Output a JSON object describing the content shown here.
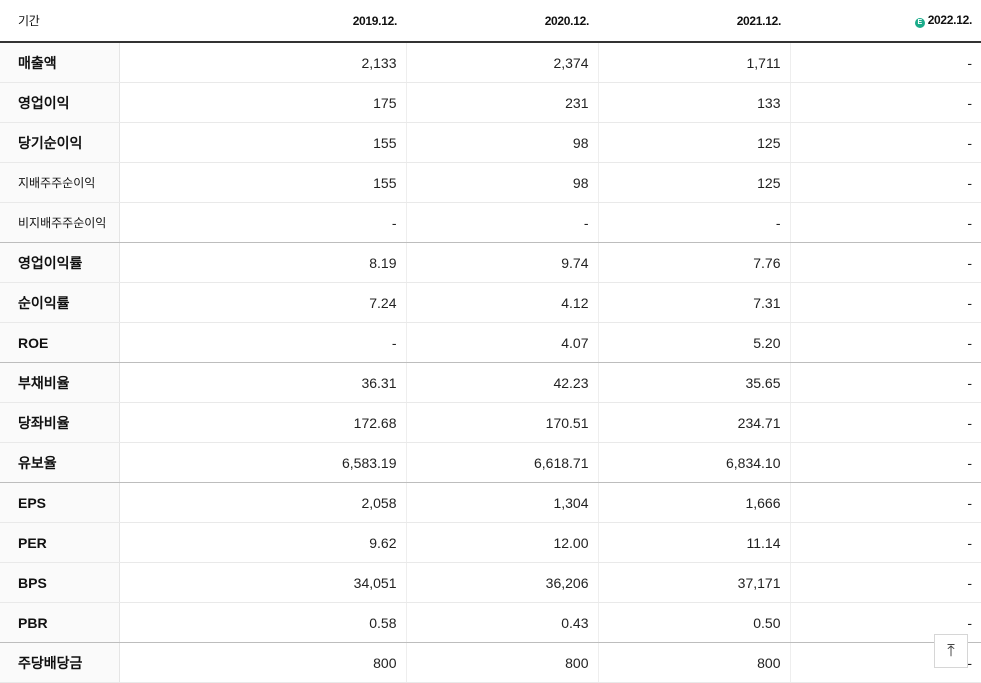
{
  "table": {
    "label_header": "기간",
    "periods": [
      "2019.12.",
      "2020.12.",
      "2021.12.",
      "2022.12."
    ],
    "estimate_badge": "E",
    "rows": [
      {
        "label": "매출액",
        "values": [
          "2,133",
          "2,374",
          "1,711",
          "-"
        ]
      },
      {
        "label": "영업이익",
        "values": [
          "175",
          "231",
          "133",
          "-"
        ]
      },
      {
        "label": "당기순이익",
        "values": [
          "155",
          "98",
          "125",
          "-"
        ]
      },
      {
        "label": "지배주주순이익",
        "values": [
          "155",
          "98",
          "125",
          "-"
        ]
      },
      {
        "label": "비지배주주순이익",
        "values": [
          "-",
          "-",
          "-",
          "-"
        ]
      },
      {
        "label": "영업이익률",
        "values": [
          "8.19",
          "9.74",
          "7.76",
          "-"
        ]
      },
      {
        "label": "순이익률",
        "values": [
          "7.24",
          "4.12",
          "7.31",
          "-"
        ]
      },
      {
        "label": "ROE",
        "values": [
          "-",
          "4.07",
          "5.20",
          "-"
        ]
      },
      {
        "label": "부채비율",
        "values": [
          "36.31",
          "42.23",
          "35.65",
          "-"
        ]
      },
      {
        "label": "당좌비율",
        "values": [
          "172.68",
          "170.51",
          "234.71",
          "-"
        ]
      },
      {
        "label": "유보율",
        "values": [
          "6,583.19",
          "6,618.71",
          "6,834.10",
          "-"
        ]
      },
      {
        "label": "EPS",
        "values": [
          "2,058",
          "1,304",
          "1,666",
          "-"
        ]
      },
      {
        "label": "PER",
        "values": [
          "9.62",
          "12.00",
          "11.14",
          "-"
        ]
      },
      {
        "label": "BPS",
        "values": [
          "34,051",
          "36,206",
          "37,171",
          "-"
        ]
      },
      {
        "label": "PBR",
        "values": [
          "0.58",
          "0.43",
          "0.50",
          "-"
        ]
      },
      {
        "label": "주당배당금",
        "values": [
          "800",
          "800",
          "800",
          "-"
        ]
      }
    ]
  },
  "scroll_top_button": {
    "icon": "arrow-up-to-top-icon",
    "glyph": "⤒"
  }
}
